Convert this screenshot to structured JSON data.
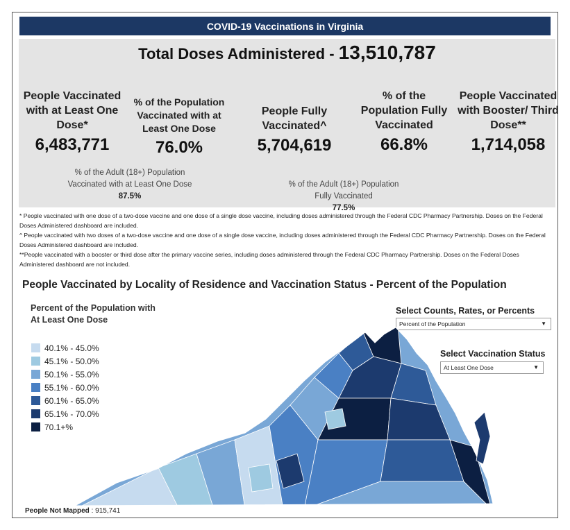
{
  "header": {
    "title": "COVID-19 Vaccinations in Virginia"
  },
  "total": {
    "label": "Total Doses Administered - ",
    "value": "13,510,787"
  },
  "metrics": [
    {
      "label": "People Vaccinated with at Least One Dose*",
      "value": "6,483,771"
    },
    {
      "label": "% of the Population Vaccinated with at Least One Dose",
      "value": "76.0%"
    },
    {
      "label": "People Fully Vaccinated^",
      "value": "5,704,619"
    },
    {
      "label": "% of the Population Fully Vaccinated",
      "value": "66.8%"
    },
    {
      "label": "People Vaccinated with Booster/ Third Dose**",
      "value": "1,714,058"
    }
  ],
  "adult_stats": [
    {
      "label": "% of the Adult (18+) Population Vaccinated with at Least One Dose",
      "value": "87.5%"
    },
    {
      "label": "% of the Adult (18+) Population Fully Vaccinated",
      "value": "77.5%"
    }
  ],
  "footnotes": [
    "* People vaccinated with one dose of a two-dose vaccine and one dose of a single dose vaccine, including doses administered through the Federal CDC Pharmacy Partnership.  Doses on the Federal Doses Administered dashboard are included.",
    "^ People vaccinated with two doses of a two-dose vaccine and one dose of a single dose vaccine, including doses administered through the Federal CDC Pharmacy Partnership.  Doses on the Federal Doses Administered dashboard are included.",
    "**People vaccinated with a booster or third dose after the primary vaccine series, including doses administered through the Federal CDC Pharmacy Partnership. Doses on the Federal Doses Administered dashboard are not included."
  ],
  "map": {
    "title": "People Vaccinated by Locality of Residence and Vaccination Status - Percent of the Population",
    "legend_title": "Percent of the Population with At Least One Dose",
    "legend": [
      {
        "label": "40.1% - 45.0%",
        "color": "#c6dbef"
      },
      {
        "label": "45.1% - 50.0%",
        "color": "#9ecae1"
      },
      {
        "label": "50.1% - 55.0%",
        "color": "#79a7d6"
      },
      {
        "label": "55.1% - 60.0%",
        "color": "#4a80c4"
      },
      {
        "label": "60.1% - 65.0%",
        "color": "#2e5a98"
      },
      {
        "label": "65.1% - 70.0%",
        "color": "#1c3a6e"
      },
      {
        "label": "70.1+%",
        "color": "#0c1f42"
      }
    ],
    "not_mapped_label": "People Not Mapped",
    "not_mapped_value": " : 915,741"
  },
  "controls": {
    "measure_label": "Select Counts, Rates, or Percents",
    "measure_value": "Percent of the Population",
    "status_label": "Select Vaccination Status",
    "status_value": "At Least One Dose"
  }
}
